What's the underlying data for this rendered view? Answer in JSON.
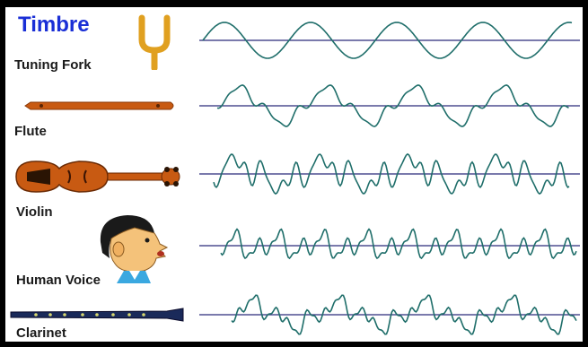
{
  "title": "Timbre",
  "instruments": [
    {
      "label": "Tuning Fork",
      "icon": "tuning-fork-icon"
    },
    {
      "label": "Flute",
      "icon": "flute-icon"
    },
    {
      "label": "Violin",
      "icon": "violin-icon"
    },
    {
      "label": "Human Voice",
      "icon": "human-face-icon"
    },
    {
      "label": "Clarinet",
      "icon": "clarinet-icon"
    }
  ],
  "colors": {
    "title": "#1a2fd6",
    "waveform": "#1f6e6a",
    "baseline": "#2a2a7a",
    "instrument_wood": "#c85a12",
    "tuning_fork": "#e0a020",
    "clarinet": "#1a2a5a"
  }
}
